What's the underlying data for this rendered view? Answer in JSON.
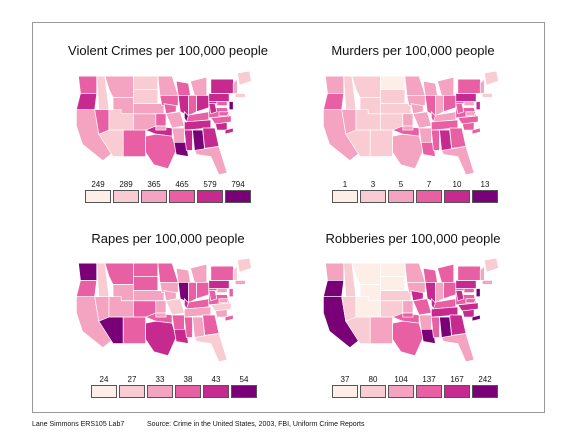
{
  "footer": {
    "author": "Lane Simmons ERS105 Lab7",
    "source": "Source: Crime in the United States, 2003, FBI, Uniform Crime Reports"
  },
  "maps": [
    {
      "title": "Violent Crimes per 100,000 people",
      "legend": [
        {
          "label": "249",
          "color": "#fdeee8"
        },
        {
          "label": "289",
          "color": "#f9cbd3"
        },
        {
          "label": "365",
          "color": "#f4a3c1"
        },
        {
          "label": "465",
          "color": "#e85fa4"
        },
        {
          "label": "579",
          "color": "#c72a8f"
        },
        {
          "label": "794",
          "color": "#7a0077"
        }
      ],
      "regions": [
        3,
        4,
        2,
        3,
        1,
        2,
        2,
        1,
        1,
        2,
        3,
        1,
        1,
        2,
        3,
        4,
        3,
        2,
        3,
        2,
        2,
        5,
        3,
        4,
        3,
        2,
        4,
        3,
        4,
        4,
        5,
        4,
        2,
        4,
        3,
        3,
        4,
        4,
        5,
        4,
        2,
        1,
        1,
        3,
        4,
        3,
        2,
        5,
        4,
        3
      ]
    },
    {
      "title": "Murders per 100,000 people",
      "legend": [
        {
          "label": "1",
          "color": "#fdeee8"
        },
        {
          "label": "3",
          "color": "#f9cbd3"
        },
        {
          "label": "5",
          "color": "#f4a3c1"
        },
        {
          "label": "7",
          "color": "#e85fa4"
        },
        {
          "label": "10",
          "color": "#c72a8f"
        },
        {
          "label": "13",
          "color": "#7a0077"
        }
      ],
      "regions": [
        2,
        3,
        2,
        2,
        1,
        1,
        1,
        1,
        1,
        1,
        1,
        0,
        1,
        1,
        2,
        3,
        2,
        2,
        2,
        2,
        2,
        3,
        2,
        3,
        2,
        2,
        3,
        2,
        3,
        3,
        4,
        3,
        2,
        3,
        3,
        3,
        3,
        4,
        4,
        3,
        2,
        1,
        1,
        2,
        3,
        2,
        2,
        3,
        3,
        2
      ]
    },
    {
      "title": "Rapes per 100,000 people",
      "legend": [
        {
          "label": "24",
          "color": "#fdeee8"
        },
        {
          "label": "27",
          "color": "#f9cbd3"
        },
        {
          "label": "33",
          "color": "#f4a3c1"
        },
        {
          "label": "38",
          "color": "#e85fa4"
        },
        {
          "label": "43",
          "color": "#c72a8f"
        },
        {
          "label": "54",
          "color": "#7a0077"
        }
      ],
      "regions": [
        5,
        3,
        2,
        2,
        1,
        3,
        2,
        2,
        5,
        3,
        3,
        3,
        3,
        2,
        2,
        3,
        4,
        3,
        2,
        1,
        3,
        4,
        2,
        5,
        3,
        2,
        3,
        3,
        2,
        3,
        2,
        3,
        1,
        2,
        1,
        3,
        3,
        4,
        3,
        3,
        1,
        1,
        2,
        2,
        3,
        2,
        2,
        4,
        3,
        2
      ]
    },
    {
      "title": "Robberies per 100,000 people",
      "legend": [
        {
          "label": "37",
          "color": "#fdeee8"
        },
        {
          "label": "80",
          "color": "#f9cbd3"
        },
        {
          "label": "104",
          "color": "#f4a3c1"
        },
        {
          "label": "137",
          "color": "#e85fa4"
        },
        {
          "label": "167",
          "color": "#c72a8f"
        },
        {
          "label": "242",
          "color": "#7a0077"
        }
      ],
      "regions": [
        2,
        5,
        5,
        1,
        1,
        0,
        0,
        0,
        1,
        1,
        2,
        0,
        0,
        1,
        2,
        3,
        3,
        2,
        2,
        3,
        2,
        5,
        3,
        4,
        2,
        3,
        3,
        3,
        4,
        3,
        5,
        4,
        2,
        4,
        4,
        3,
        4,
        4,
        5,
        3,
        2,
        1,
        2,
        3,
        5,
        4,
        3,
        4,
        3,
        3
      ]
    }
  ]
}
